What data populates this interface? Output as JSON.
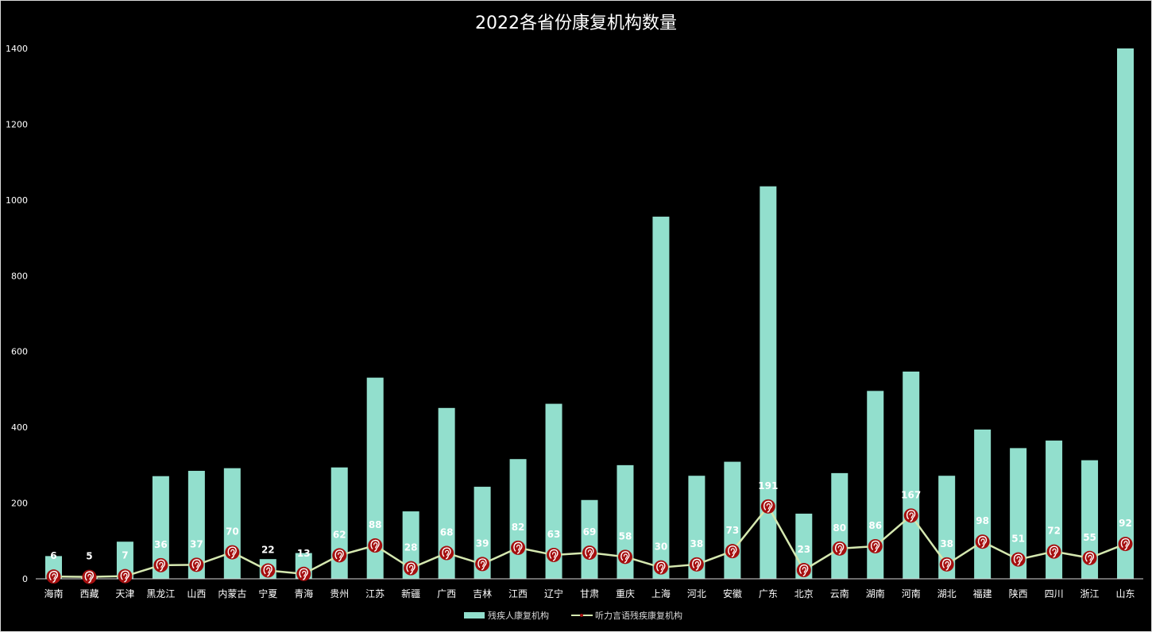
{
  "chart_data": {
    "type": "bar",
    "title": "2022各省份康复机构数量",
    "categories": [
      "海南",
      "西藏",
      "天津",
      "黑龙江",
      "山西",
      "内蒙古",
      "宁夏",
      "青海",
      "贵州",
      "江苏",
      "新疆",
      "广西",
      "吉林",
      "江西",
      "辽宁",
      "甘肃",
      "重庆",
      "上海",
      "河北",
      "安徽",
      "广东",
      "北京",
      "云南",
      "湖南",
      "河南",
      "湖北",
      "福建",
      "陕西",
      "四川",
      "浙江",
      "山东"
    ],
    "y_ticks": [
      0,
      200,
      400,
      600,
      800,
      1000,
      1200,
      1400
    ],
    "ylim": [
      0,
      1400
    ],
    "grid": false,
    "legend_position": "bottom",
    "series": [
      {
        "name": "残疾人康复机构",
        "type": "bar",
        "color": "#92dfcd",
        "values": [
          60,
          5,
          98,
          271,
          285,
          292,
          52,
          68,
          294,
          531,
          178,
          451,
          243,
          316,
          462,
          208,
          300,
          956,
          272,
          309,
          1036,
          172,
          279,
          496,
          547,
          272,
          394,
          345,
          365,
          313,
          1400
        ]
      },
      {
        "name": "听力言语残疾康复机构",
        "type": "line",
        "color": "#d5e8b0",
        "marker_color": "#a50f0f",
        "marker_icon": "ear-icon",
        "values": [
          6,
          5,
          7,
          36,
          37,
          70,
          22,
          13,
          62,
          88,
          28,
          68,
          39,
          82,
          63,
          69,
          58,
          30,
          38,
          73,
          191,
          23,
          80,
          86,
          167,
          38,
          98,
          51,
          72,
          55,
          92
        ]
      }
    ]
  }
}
